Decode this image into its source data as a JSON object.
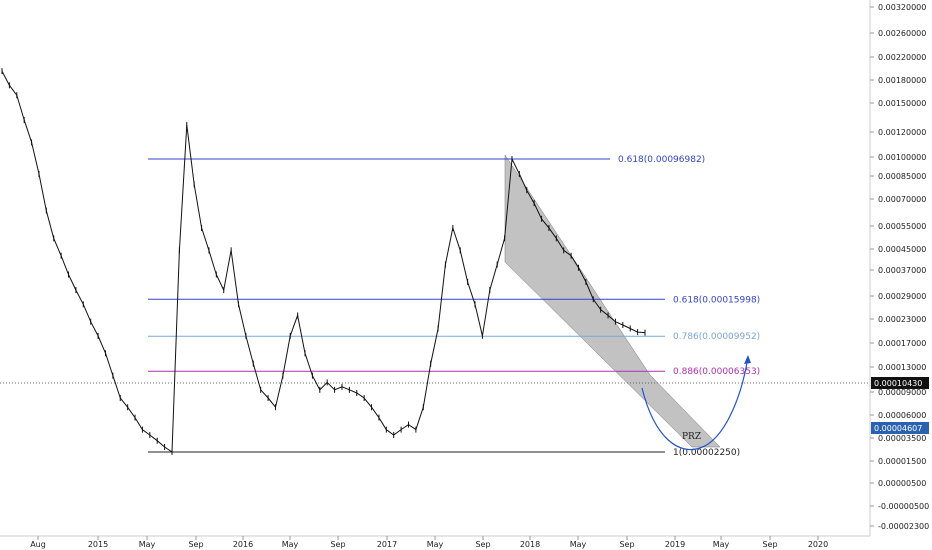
{
  "chart_data": {
    "type": "line",
    "y_scale": "log",
    "grid": false,
    "y_ticks": [
      "0.00320000",
      "0.00260000",
      "0.00220000",
      "0.00180000",
      "0.00150000",
      "0.00120000",
      "0.00100000",
      "0.00085000",
      "0.00070000",
      "0.00055000",
      "0.00045000",
      "0.00037000",
      "0.00029000",
      "0.00023000",
      "0.00017000",
      "0.00013000",
      "0.00009000",
      "0.00006000",
      "0.00003500",
      "0.00001500",
      "0.00000500",
      "-0.00000500",
      "-0.00002300",
      "-0.00004200"
    ],
    "x_ticks": [
      "Aug",
      "2015",
      "May",
      "Sep",
      "2016",
      "May",
      "Sep",
      "2017",
      "May",
      "Sep",
      "2018",
      "May",
      "Sep",
      "2019",
      "May",
      "Sep",
      "2020"
    ],
    "series": [
      {
        "values": [
          0.003,
          0.0025,
          0.0022,
          0.0016,
          0.0012,
          0.0008,
          0.0005,
          0.00035,
          0.00028,
          0.00022,
          0.00018,
          0.00015,
          0.00012,
          0.0001,
          8e-05,
          6e-05,
          4.5e-05,
          4e-05,
          3.5e-05,
          3e-05,
          2.8e-05,
          2.6e-05,
          2.4e-05,
          2.25e-05,
          0.0003,
          0.0015,
          0.0007,
          0.0004,
          0.0003,
          0.00022,
          0.00018,
          0.0003,
          0.00015,
          0.0001,
          7e-05,
          5e-05,
          4.5e-05,
          4e-05,
          6e-05,
          0.0001,
          0.00013,
          8e-05,
          6e-05,
          5e-05,
          5.5e-05,
          5e-05,
          5.2e-05,
          5e-05,
          4.8e-05,
          4.5e-05,
          4e-05,
          3.5e-05,
          3e-05,
          2.8e-05,
          3e-05,
          3.2e-05,
          3e-05,
          4e-05,
          7e-05,
          0.00011,
          0.00025,
          0.0004,
          0.0003,
          0.0002,
          0.00015,
          0.0001,
          0.00018,
          0.00025,
          0.00035,
          0.00096982,
          0.0008,
          0.00065,
          0.00055,
          0.00045,
          0.0004,
          0.00035,
          0.0003,
          0.00028,
          0.00024,
          0.0002,
          0.00016,
          0.00014,
          0.00013,
          0.00012,
          0.000115,
          0.00011,
          0.000105,
          0.0001043
        ]
      }
    ],
    "fib_levels": [
      {
        "label": "0.618(0.00096982)",
        "value": 0.00096982,
        "color": "#3344cc"
      },
      {
        "label": "0.618(0.00015998)",
        "value": 0.00015998,
        "color": "#3344cc"
      },
      {
        "label": "0.786(0.00009952)",
        "value": 9.952e-05,
        "color": "#7aa7d6"
      },
      {
        "label": "0.886(0.00006353)",
        "value": 6.353e-05,
        "color": "#b030b0"
      },
      {
        "label": "1(0.00002250)",
        "value": 2.25e-05,
        "color": "#222222"
      }
    ],
    "annotations": [
      "PRZ"
    ],
    "price_tags": [
      {
        "text": "0.00010430",
        "color": "#111111"
      },
      {
        "text": "0.00004607",
        "color": "#2a62b0"
      }
    ],
    "projection_color": "#2255cc",
    "channel_color": "#888888"
  }
}
